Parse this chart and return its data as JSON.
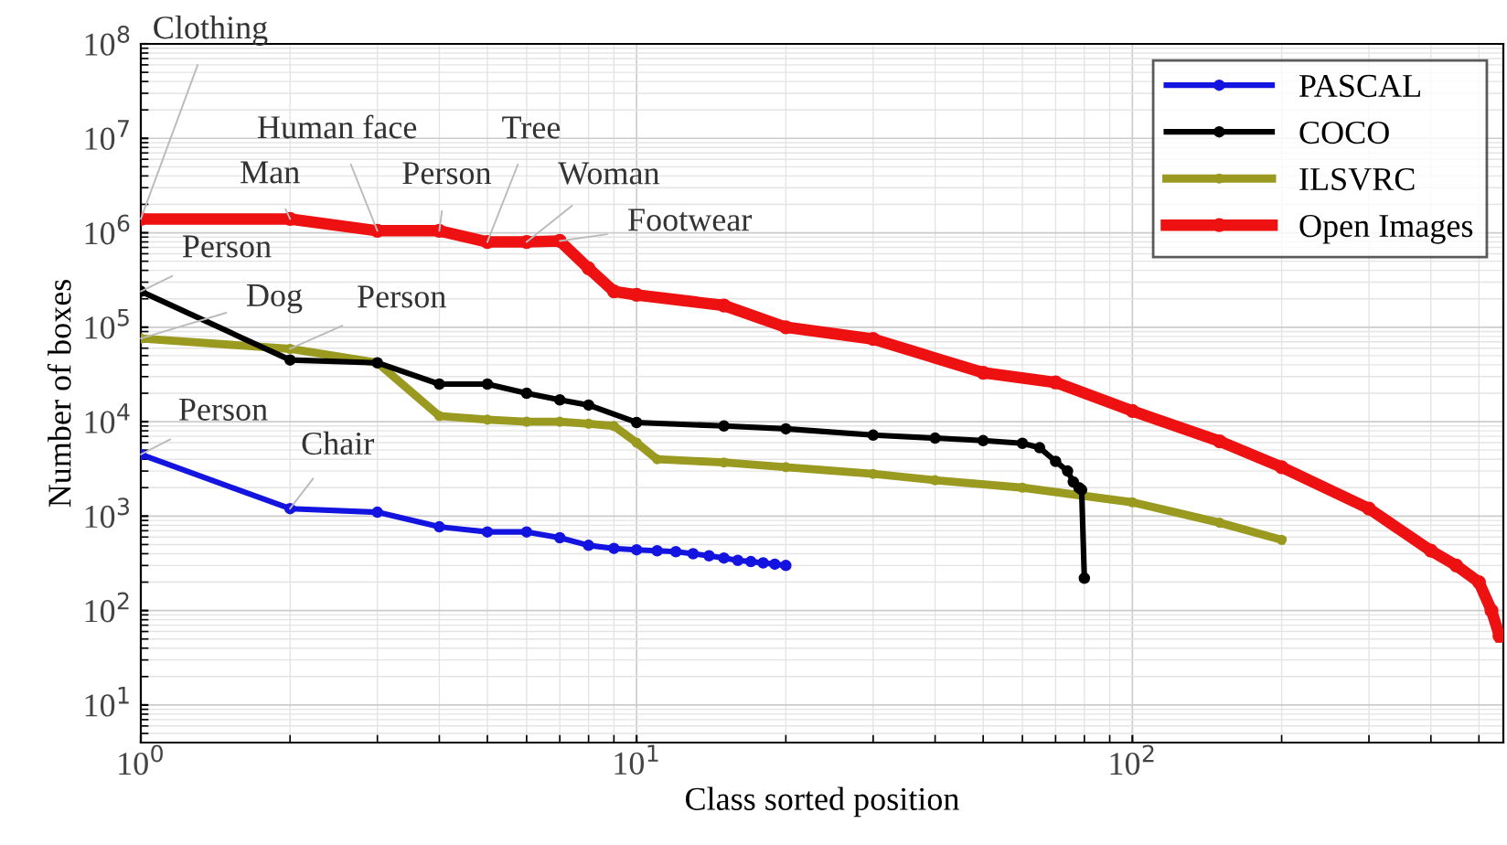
{
  "chart_data": {
    "type": "line",
    "xlabel": "Class sorted position",
    "ylabel": "Number of boxes",
    "log": "xy",
    "grid": true,
    "legend": "top right",
    "marker": "circle",
    "line_style": "solid",
    "xlim": [
      1,
      560
    ],
    "ylim": [
      4,
      100000000
    ],
    "xticks": [
      {
        "value": 1,
        "label": "10$^{0}$"
      },
      {
        "value": 10,
        "label": "10$^{1}$"
      },
      {
        "value": 100,
        "label": "10$^{2}$"
      }
    ],
    "yticks": [
      {
        "value": 10,
        "label": "10$^{1}$"
      },
      {
        "value": 100,
        "label": "10$^{2}$"
      },
      {
        "value": 1000,
        "label": "10$^{3}$"
      },
      {
        "value": 10000,
        "label": "10$^{4}$"
      },
      {
        "value": 100000,
        "label": "10$^{5}$"
      },
      {
        "value": 1000000,
        "label": "10$^{6}$"
      },
      {
        "value": 10000000,
        "label": "10$^{7}$"
      },
      {
        "value": 100000000,
        "label": "10$^{8}$"
      }
    ],
    "series": [
      {
        "name": "PASCAL",
        "color": "#1414e0",
        "x": [
          1,
          2,
          3,
          4,
          5,
          6,
          7,
          8,
          9,
          10,
          11,
          12,
          13,
          14,
          15,
          16,
          17,
          18,
          19,
          20
        ],
        "values": [
          4500,
          1200,
          1100,
          770,
          680,
          680,
          590,
          490,
          455,
          440,
          430,
          420,
          400,
          380,
          360,
          340,
          330,
          320,
          310,
          300
        ]
      },
      {
        "name": "COCO",
        "color": "#000000",
        "x": [
          1,
          2,
          3,
          4,
          5,
          6,
          7,
          8,
          10,
          15,
          20,
          30,
          40,
          50,
          60,
          65,
          70,
          74,
          76,
          78,
          79,
          80
        ],
        "values": [
          240000,
          45000,
          42000,
          25000,
          25000,
          20000,
          17000,
          15000,
          9800,
          9000,
          8400,
          7200,
          6700,
          6300,
          5900,
          5300,
          3800,
          3000,
          2300,
          2000,
          1900,
          220
        ]
      },
      {
        "name": "ILSVRC",
        "color": "#9a9a20",
        "x": [
          1,
          2,
          3,
          4,
          5,
          6,
          7,
          8,
          9,
          10,
          11,
          15,
          20,
          30,
          40,
          60,
          100,
          150,
          200
        ],
        "values": [
          76000,
          59000,
          42000,
          11500,
          10500,
          10000,
          10000,
          9500,
          9000,
          6000,
          4000,
          3700,
          3300,
          2800,
          2400,
          2000,
          1400,
          850,
          560
        ]
      },
      {
        "name": "Open Images",
        "color": "#ee1111",
        "x": [
          1,
          2,
          3,
          4,
          5,
          6,
          7,
          8,
          9,
          10,
          15,
          20,
          30,
          50,
          70,
          100,
          150,
          200,
          300,
          400,
          450,
          500,
          530,
          550
        ],
        "values": [
          1400000,
          1400000,
          1050000,
          1050000,
          800000,
          800000,
          820000,
          420000,
          240000,
          220000,
          170000,
          100000,
          75000,
          33000,
          26000,
          13000,
          6200,
          3300,
          1200,
          430,
          300,
          200,
          100,
          54
        ]
      }
    ],
    "annotations": [
      {
        "text": "Clothing",
        "x": 1,
        "y": 1400000
      },
      {
        "text": "Man",
        "x": 2,
        "y": 1400000
      },
      {
        "text": "Human face",
        "x": 3,
        "y": 1050000
      },
      {
        "text": "Person",
        "x": 4,
        "y": 1050000
      },
      {
        "text": "Tree",
        "x": 5,
        "y": 800000
      },
      {
        "text": "Woman",
        "x": 6,
        "y": 800000
      },
      {
        "text": "Footwear",
        "x": 7,
        "y": 820000
      },
      {
        "text": "Person",
        "x": 1,
        "y": 240000
      },
      {
        "text": "Dog",
        "x": 1,
        "y": 76000
      },
      {
        "text": "Person",
        "x": 2,
        "y": 59000
      },
      {
        "text": "Person",
        "x": 1,
        "y": 4500
      },
      {
        "text": "Chair",
        "x": 2,
        "y": 1200
      }
    ]
  }
}
